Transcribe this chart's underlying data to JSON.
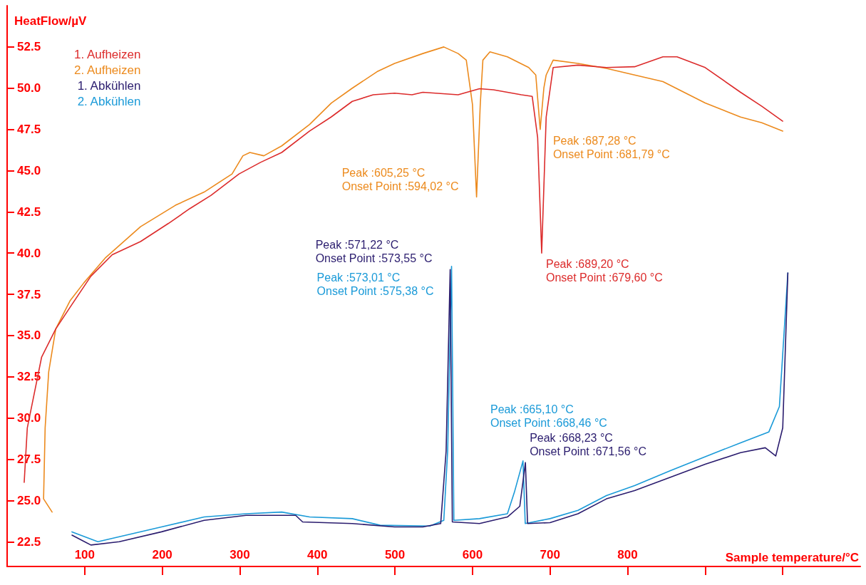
{
  "chart_data": {
    "type": "line",
    "xlabel": "Sample temperature/°C",
    "ylabel": "HeatFlow/µV",
    "xlim": [
      0,
      1100
    ],
    "xticks": [
      100,
      200,
      300,
      400,
      500,
      600,
      700,
      800,
      {
        "value": 900,
        "label": null
      },
      {
        "value": 1000,
        "label": null
      }
    ],
    "ylim": [
      21,
      55
    ],
    "yticks": [
      {
        "value": 22.5,
        "label": "22.5"
      },
      {
        "value": 25,
        "label": "25.0"
      },
      {
        "value": 27.5,
        "label": "27.5"
      },
      {
        "value": 30,
        "label": "30.0"
      },
      {
        "value": 32.5,
        "label": "32.5"
      },
      {
        "value": 35,
        "label": "35.0"
      },
      {
        "value": 37.5,
        "label": "37.5"
      },
      {
        "value": 40,
        "label": "40.0"
      },
      {
        "value": 42.5,
        "label": "42.5"
      },
      {
        "value": 45,
        "label": "45.0"
      },
      {
        "value": 47.5,
        "label": "47.5"
      },
      {
        "value": 50,
        "label": "50.0"
      },
      {
        "value": 52.5,
        "label": "52.5"
      }
    ],
    "grid": false,
    "legend": "top left",
    "marker": "none",
    "line_style": "solid",
    "series": [
      {
        "name": "1. Aufheizen",
        "color": "#dc2b2b",
        "x": [
          22,
          26,
          44.5,
          62.7,
          80.9,
          108,
          135.5,
          172,
          208,
          235.6,
          262.9,
          299,
          326.7,
          354,
          390,
          417.7,
          445,
          472,
          499.6,
          522,
          536,
          581.5,
          609,
          627,
          663,
          677,
          684,
          689.2,
          695,
          704,
          736,
          772.7,
          809,
          845.5,
          863.7,
          900,
          945.6,
          973,
          1000
        ],
        "values": [
          26.1,
          29.4,
          33.7,
          35.4,
          36.7,
          38.6,
          39.9,
          40.7,
          41.8,
          42.7,
          43.5,
          44.8,
          45.5,
          46.1,
          47.4,
          48.25,
          49.2,
          49.6,
          49.7,
          49.6,
          49.75,
          49.6,
          49.97,
          49.9,
          49.6,
          49.5,
          47,
          40,
          48.25,
          51.25,
          51.4,
          51.25,
          51.3,
          51.9,
          51.9,
          51.25,
          49.75,
          48.9,
          48
        ],
        "value_labels": [
          null,
          null,
          null,
          null,
          null,
          null,
          null,
          null,
          null,
          null,
          null,
          null,
          null,
          null,
          null,
          null,
          null,
          null,
          null,
          null,
          null,
          null,
          null,
          null,
          null,
          null,
          null,
          "Peak :689,20 °C\nOnset Point :679,60 °C",
          null,
          null,
          null,
          null,
          null,
          null,
          null,
          null,
          null,
          null,
          null
        ]
      },
      {
        "name": "2. Aufheizen",
        "color": "#ec8a1d",
        "x": [
          58,
          47,
          49,
          53.6,
          62.7,
          81,
          99,
          126.4,
          172,
          217,
          254,
          290,
          304,
          313,
          331,
          354,
          390,
          418,
          445,
          477,
          499.6,
          536,
          563,
          581.5,
          592,
          600,
          605.25,
          610,
          613.4,
          622.5,
          645,
          672.5,
          681.6,
          687.28,
          692,
          695,
          704,
          736,
          772.7,
          809,
          845.5,
          900,
          945.6,
          973,
          1000
        ],
        "values": [
          24.3,
          25.1,
          29.4,
          32.8,
          35.4,
          37.1,
          38.2,
          39.7,
          41.6,
          42.9,
          43.7,
          44.8,
          45.9,
          46.1,
          45.9,
          46.5,
          47.8,
          49.1,
          50,
          51,
          51.5,
          52.1,
          52.5,
          52.1,
          51.7,
          49,
          43.4,
          49,
          51.7,
          52.2,
          51.9,
          51.25,
          50.8,
          47.5,
          50,
          50.8,
          51.7,
          51.5,
          51.2,
          50.8,
          50.4,
          49.1,
          48.25,
          47.9,
          47.4
        ],
        "value_labels": [
          null,
          null,
          null,
          null,
          null,
          null,
          null,
          null,
          null,
          null,
          null,
          null,
          null,
          null,
          null,
          null,
          null,
          null,
          null,
          null,
          null,
          null,
          null,
          null,
          null,
          null,
          "Peak :605,25 °C\nOnset Point :594,02 °C",
          null,
          null,
          null,
          null,
          null,
          null,
          "Peak :687,28 °C\nOnset Point :681,79 °C",
          null,
          null,
          null,
          null,
          null,
          null,
          null,
          null,
          null,
          null,
          null
        ]
      },
      {
        "name": "1. Abkühlen",
        "color": "#2a1c6e",
        "x": [
          83.6,
          108,
          144.6,
          199,
          254,
          308,
          372,
          381,
          445,
          499.6,
          536,
          559,
          566,
          571.22,
          574,
          609,
          645,
          661,
          668.23,
          671,
          699.9,
          736,
          772.7,
          809,
          854.6,
          900,
          945.6,
          977.5,
          991,
          1000,
          1006.6
        ],
        "values": [
          22.9,
          22.3,
          22.5,
          23.1,
          23.8,
          24.1,
          24.1,
          23.7,
          23.6,
          23.4,
          23.4,
          23.6,
          28,
          39,
          23.7,
          23.6,
          24,
          24.65,
          27.3,
          23.6,
          23.66,
          24.2,
          25.1,
          25.6,
          26.4,
          27.2,
          27.9,
          28.2,
          27.7,
          29.4,
          38.8
        ],
        "value_labels": [
          null,
          null,
          null,
          null,
          null,
          null,
          null,
          null,
          null,
          null,
          null,
          null,
          null,
          "Peak :571,22 °C\nOnset Point :573,55 °C",
          null,
          null,
          null,
          null,
          "Peak :668,23 °C\nOnset Point :671,56 °C",
          null,
          null,
          null,
          null,
          null,
          null,
          null,
          null,
          null,
          null,
          null,
          null
        ]
      },
      {
        "name": "2. Abkühlen",
        "color": "#1a9ad8",
        "x": [
          83.6,
          117,
          199,
          254,
          308,
          354,
          390,
          445,
          481,
          545,
          563,
          568,
          573.01,
          576,
          609,
          645,
          654,
          665.1,
          668,
          699.9,
          736,
          772.7,
          809,
          854.6,
          900,
          945.6,
          982,
          995.7,
          1006.6
        ],
        "values": [
          23.1,
          22.5,
          23.4,
          24,
          24.2,
          24.3,
          24,
          23.9,
          23.5,
          23.45,
          23.8,
          28,
          39.2,
          23.8,
          23.9,
          24.2,
          25.5,
          27.4,
          23.6,
          23.9,
          24.4,
          25.3,
          25.9,
          26.8,
          27.65,
          28.5,
          29.15,
          30.7,
          38.8
        ],
        "value_labels": [
          null,
          null,
          null,
          null,
          null,
          null,
          null,
          null,
          null,
          null,
          null,
          null,
          "Peak :573,01 °C\nOnset Point :575,38 °C",
          null,
          null,
          null,
          null,
          "Peak :665,10 °C\nOnset Point :668,46 °C",
          null,
          null,
          null,
          null,
          null,
          null,
          null,
          null,
          null,
          null,
          null
        ]
      }
    ]
  }
}
